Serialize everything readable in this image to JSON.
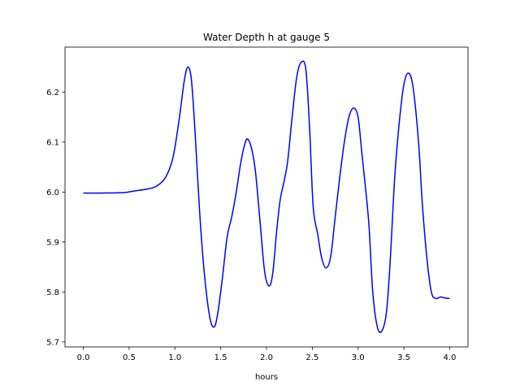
{
  "chart_data": {
    "type": "line",
    "title": "Water Depth h at gauge 5",
    "xlabel": "hours",
    "ylabel": "",
    "xlim": [
      -0.2,
      4.2
    ],
    "ylim": [
      5.69,
      6.29
    ],
    "grid": false,
    "xticks": [
      0.0,
      0.5,
      1.0,
      1.5,
      2.0,
      2.5,
      3.0,
      3.5,
      4.0
    ],
    "xtick_labels": [
      "0.0",
      "0.5",
      "1.0",
      "1.5",
      "2.0",
      "2.5",
      "3.0",
      "3.5",
      "4.0"
    ],
    "yticks": [
      5.7,
      5.8,
      5.9,
      6.0,
      6.1,
      6.2
    ],
    "ytick_labels": [
      "5.7",
      "5.8",
      "5.9",
      "6.0",
      "6.1",
      "6.2"
    ],
    "line_color": "#0000ff",
    "series": [
      {
        "x": [
          0.0,
          0.2,
          0.45,
          0.55,
          0.7,
          0.8,
          0.9,
          0.98,
          1.05,
          1.1,
          1.14,
          1.18,
          1.22,
          1.27,
          1.32,
          1.38,
          1.43,
          1.47,
          1.52,
          1.57,
          1.62,
          1.67,
          1.72,
          1.77,
          1.8,
          1.84,
          1.88,
          1.93,
          1.98,
          2.03,
          2.07,
          2.11,
          2.15,
          2.19,
          2.23,
          2.28,
          2.33,
          2.38,
          2.43,
          2.47,
          2.51,
          2.56,
          2.6,
          2.65,
          2.7,
          2.75,
          2.8,
          2.85,
          2.9,
          2.95,
          3.0,
          3.04,
          3.08,
          3.12,
          3.16,
          3.21,
          3.26,
          3.31,
          3.35,
          3.4,
          3.45,
          3.5,
          3.55,
          3.6,
          3.66,
          3.7,
          3.75,
          3.8,
          3.85,
          3.9,
          3.95,
          4.0
        ],
        "y": [
          5.998,
          5.998,
          5.999,
          6.002,
          6.006,
          6.012,
          6.03,
          6.07,
          6.15,
          6.22,
          6.25,
          6.225,
          6.12,
          5.96,
          5.84,
          5.75,
          5.73,
          5.76,
          5.83,
          5.91,
          5.95,
          6.0,
          6.06,
          6.1,
          6.105,
          6.085,
          6.04,
          5.94,
          5.84,
          5.812,
          5.84,
          5.92,
          5.985,
          6.02,
          6.06,
          6.15,
          6.23,
          6.26,
          6.245,
          6.13,
          5.97,
          5.915,
          5.87,
          5.848,
          5.87,
          5.95,
          6.03,
          6.1,
          6.15,
          6.168,
          6.15,
          6.08,
          6.01,
          5.93,
          5.8,
          5.73,
          5.722,
          5.76,
          5.86,
          6.03,
          6.14,
          6.215,
          6.238,
          6.21,
          6.1,
          5.98,
          5.87,
          5.8,
          5.787,
          5.79,
          5.788,
          5.787
        ]
      }
    ]
  }
}
